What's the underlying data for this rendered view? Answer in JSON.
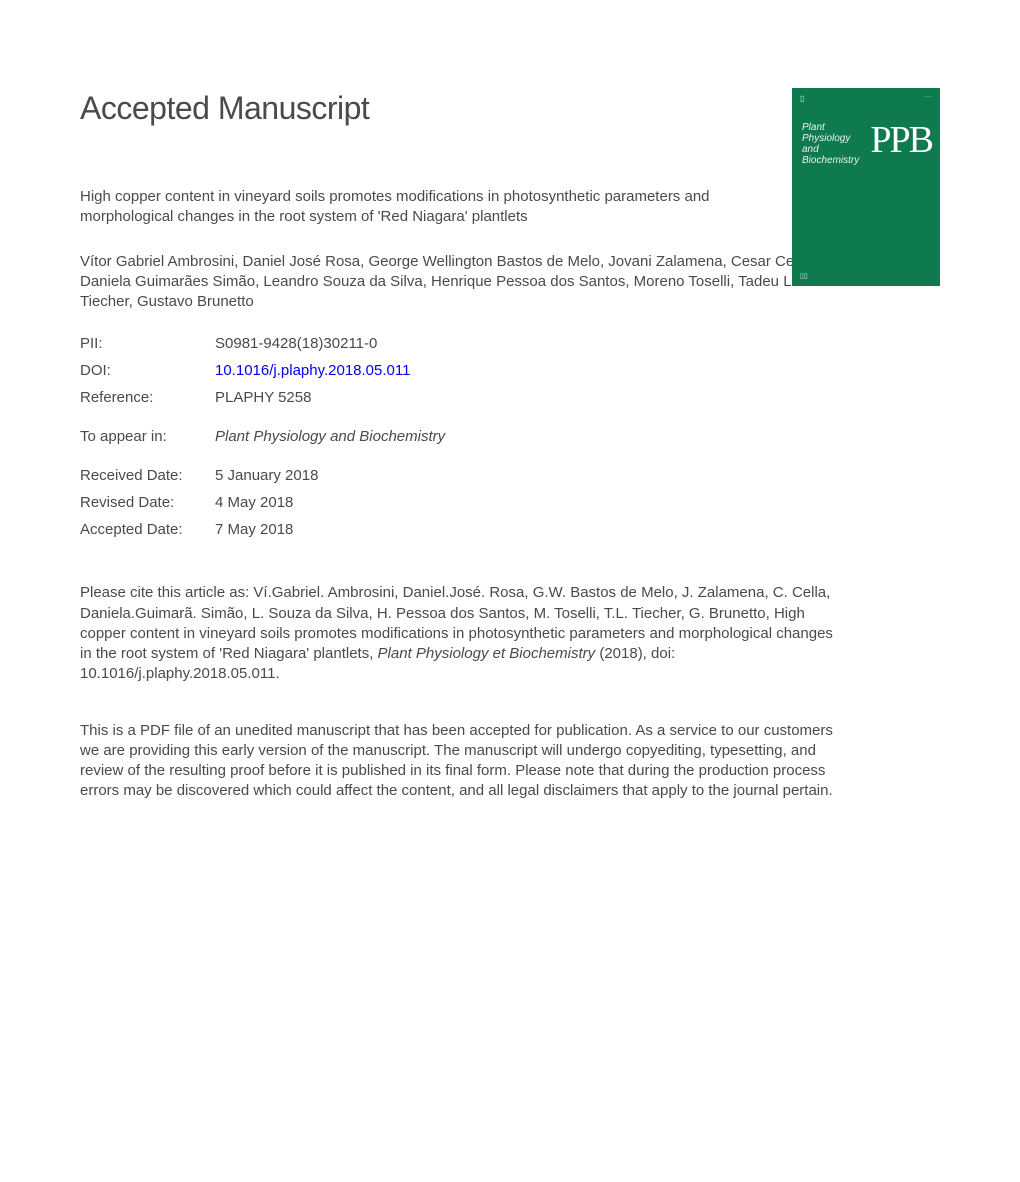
{
  "heading": "Accepted Manuscript",
  "article_title": "High copper content in vineyard soils promotes modifications in photosynthetic parameters and morphological changes in the root system of 'Red Niagara' plantlets",
  "authors": "Vítor Gabriel Ambrosini, Daniel José Rosa, George Wellington Bastos de Melo, Jovani Zalamena, Cesar Cella, Daniela Guimarães Simão, Leandro Souza da Silva, Henrique Pessoa dos Santos, Moreno Toselli, Tadeu Luis Tiecher, Gustavo Brunetto",
  "meta": {
    "pii_label": "PII:",
    "pii_value": "S0981-9428(18)30211-0",
    "doi_label": "DOI:",
    "doi_value": "10.1016/j.plaphy.2018.05.011",
    "reference_label": "Reference:",
    "reference_value": "PLAPHY 5258",
    "appear_label": "To appear in:",
    "appear_value": "Plant Physiology and Biochemistry",
    "received_label": "Received Date:",
    "received_value": "5 January 2018",
    "revised_label": "Revised Date:",
    "revised_value": "4 May 2018",
    "accepted_label": "Accepted Date:",
    "accepted_value": "7 May 2018"
  },
  "citation_prefix": "Please cite this article as: Ví.Gabriel. Ambrosini, Daniel.José. Rosa, G.W. Bastos de Melo, J. Zalamena, C. Cella, Daniela.Guimarã. Simão, L. Souza da Silva, H. Pessoa dos Santos, M. Toselli, T.L. Tiecher, G. Brunetto, High copper content in vineyard soils promotes modifications in photosynthetic parameters and morphological changes in the root system of 'Red Niagara' plantlets, ",
  "citation_journal": "Plant Physiology et Biochemistry",
  "citation_suffix": " (2018), doi: 10.1016/j.plaphy.2018.05.011.",
  "disclaimer": "This is a PDF file of an unedited manuscript that has been accepted for publication. As a service to our customers we are providing this early version of the manuscript. The manuscript will undergo copyediting, typesetting, and review of the resulting proof before it is published in its final form. Please note that during the production process errors may be discovered which could affect the content, and all legal disclaimers that apply to the journal pertain.",
  "cover": {
    "small_title_line1": "Plant",
    "small_title_line2": "Physiology",
    "small_title_line3": "and",
    "small_title_line4": "Biochemistry",
    "ppb": "PPB",
    "background_color": "#0e7a4e"
  }
}
